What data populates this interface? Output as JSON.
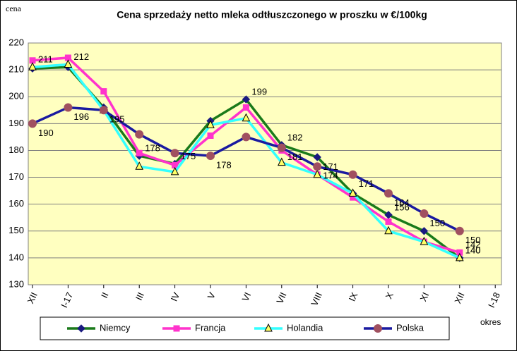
{
  "chart_data": {
    "type": "line",
    "title": "Cena sprzedaży netto mleka odtłuszczonego w proszku w €/100kg",
    "y_label": "cena",
    "x_label": "okres",
    "categories": [
      "XII",
      "I-17",
      "II",
      "III",
      "IV",
      "V",
      "VI",
      "VII",
      "VIII",
      "IX",
      "X",
      "XI",
      "XII",
      "I-18"
    ],
    "ylim": [
      130,
      220
    ],
    "yticks": [
      130,
      140,
      150,
      160,
      170,
      180,
      190,
      200,
      210,
      220
    ],
    "grid": true,
    "legend": "bottom",
    "series": [
      {
        "name": "Niemcy",
        "color": "#1a7a1a",
        "marker": "diamond",
        "marker_color": "#1a1a80",
        "values": [
          210.5,
          211,
          196,
          178,
          175,
          191,
          199,
          182,
          177.5,
          164,
          156,
          150,
          140,
          null
        ],
        "value_labels": [
          null,
          null,
          null,
          "178",
          "175",
          null,
          "199",
          "182",
          null,
          null,
          "156",
          "150",
          "140",
          null
        ]
      },
      {
        "name": "Francja",
        "color": "#ff33cc",
        "marker": "square",
        "marker_color": "#ff33cc",
        "values": [
          213.5,
          214.5,
          202,
          179,
          174.5,
          185.5,
          196,
          180,
          171,
          162.5,
          153.5,
          146,
          142,
          null
        ],
        "value_labels": [
          null,
          null,
          null,
          null,
          null,
          null,
          null,
          null,
          null,
          null,
          null,
          null,
          "142",
          null
        ]
      },
      {
        "name": "Holandia",
        "color": "#33ffff",
        "marker": "triangle",
        "marker_color": "#ffff66",
        "values": [
          211,
          212,
          195,
          174,
          172,
          189.5,
          192,
          175.5,
          171,
          164,
          150,
          146,
          140,
          null
        ],
        "value_labels": [
          "211",
          "212",
          null,
          null,
          null,
          null,
          null,
          null,
          "171",
          null,
          null,
          null,
          "140",
          null
        ]
      },
      {
        "name": "Polska",
        "color": "#1a1aa0",
        "marker": "circle",
        "marker_color": "#a05060",
        "values": [
          190,
          196,
          195,
          186,
          179,
          178,
          185,
          181,
          174,
          171,
          164,
          156.5,
          150,
          null
        ],
        "value_labels": [
          "190",
          "196",
          "195",
          null,
          null,
          "178",
          null,
          "181",
          "174",
          "171",
          "164",
          null,
          "150",
          null
        ]
      }
    ]
  }
}
